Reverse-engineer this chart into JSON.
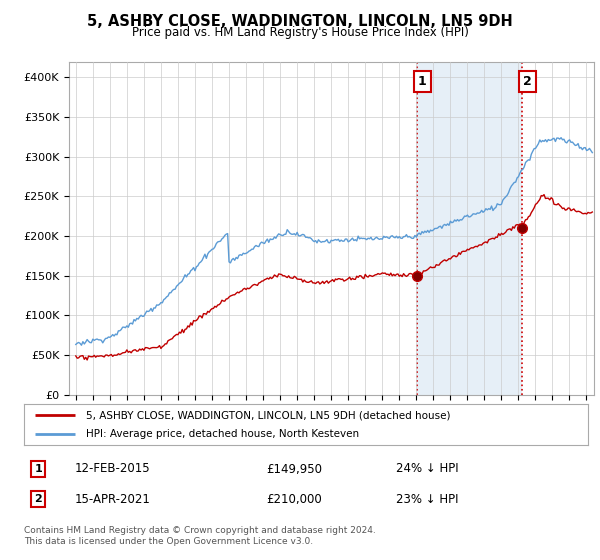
{
  "title": "5, ASHBY CLOSE, WADDINGTON, LINCOLN, LN5 9DH",
  "subtitle": "Price paid vs. HM Land Registry's House Price Index (HPI)",
  "ylabel_ticks": [
    "£0",
    "£50K",
    "£100K",
    "£150K",
    "£200K",
    "£250K",
    "£300K",
    "£350K",
    "£400K"
  ],
  "ytick_values": [
    0,
    50000,
    100000,
    150000,
    200000,
    250000,
    300000,
    350000,
    400000
  ],
  "ylim": [
    0,
    420000
  ],
  "xlim_start": 1994.6,
  "xlim_end": 2025.5,
  "hpi_color": "#5b9bd5",
  "price_color": "#c00000",
  "marker1_year": 2015.1,
  "marker1_value": 149950,
  "marker2_year": 2021.28,
  "marker2_value": 210000,
  "vline_color": "#cc0000",
  "shade_color": "#dce9f5",
  "legend_label_red": "5, ASHBY CLOSE, WADDINGTON, LINCOLN, LN5 9DH (detached house)",
  "legend_label_blue": "HPI: Average price, detached house, North Kesteven",
  "bg_color": "#ffffff",
  "plot_bg_color": "#ffffff",
  "xtick_years": [
    1995,
    1996,
    1997,
    1998,
    1999,
    2000,
    2001,
    2002,
    2003,
    2004,
    2005,
    2006,
    2007,
    2008,
    2009,
    2010,
    2011,
    2012,
    2013,
    2014,
    2015,
    2016,
    2017,
    2018,
    2019,
    2020,
    2021,
    2022,
    2023,
    2024,
    2025
  ],
  "footnote": "Contains HM Land Registry data © Crown copyright and database right 2024.\nThis data is licensed under the Open Government Licence v3.0."
}
